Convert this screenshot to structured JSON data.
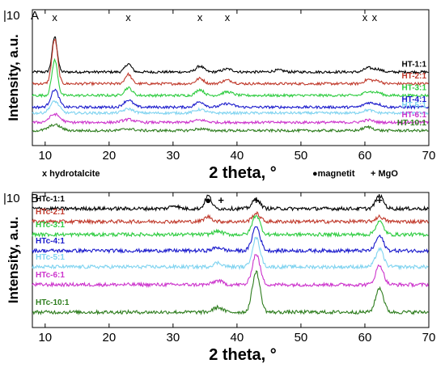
{
  "chart_data": [
    {
      "type": "line",
      "panel_label": "A",
      "scale_label": "|10",
      "xlabel": "2 theta, °",
      "ylabel": "Intensity, a.u.",
      "xlim": [
        8,
        70
      ],
      "x_ticks": [
        10,
        20,
        30,
        40,
        50,
        60,
        70
      ],
      "grid": false,
      "marker_symbol": "x",
      "marker_legend": "x hydrotalcite",
      "marker_positions": [
        11.5,
        23,
        34.2,
        38.5,
        60,
        61.5
      ],
      "series": [
        {
          "name": "HT-1:1",
          "color": "#000000",
          "offset": 6,
          "peaks": [
            [
              11.5,
              3.0,
              0.4
            ],
            [
              23,
              0.7,
              0.5
            ],
            [
              34.2,
              0.5,
              0.6
            ],
            [
              38.5,
              0.25,
              0.8
            ],
            [
              46.5,
              0.15,
              0.8
            ],
            [
              60.5,
              0.35,
              0.6
            ],
            [
              62,
              0.25,
              0.6
            ]
          ]
        },
        {
          "name": "HT-2:1",
          "color": "#c0392b",
          "offset": 5,
          "peaks": [
            [
              11.5,
              3.8,
              0.45
            ],
            [
              23,
              0.8,
              0.5
            ],
            [
              34.2,
              0.45,
              0.6
            ],
            [
              38.5,
              0.3,
              0.8
            ],
            [
              60.5,
              0.35,
              0.6
            ],
            [
              62,
              0.25,
              0.6
            ]
          ]
        },
        {
          "name": "HT-3:1",
          "color": "#2ecc40",
          "offset": 4,
          "peaks": [
            [
              11.5,
              3.0,
              0.45
            ],
            [
              23,
              0.65,
              0.6
            ],
            [
              34.2,
              0.5,
              0.6
            ],
            [
              38.5,
              0.3,
              0.8
            ],
            [
              60.5,
              0.35,
              0.6
            ],
            [
              62,
              0.25,
              0.6
            ]
          ]
        },
        {
          "name": "HT-4:1",
          "color": "#1a1acc",
          "offset": 3,
          "peaks": [
            [
              11.5,
              1.5,
              0.6
            ],
            [
              23,
              0.6,
              0.7
            ],
            [
              34.2,
              0.45,
              0.7
            ],
            [
              38.5,
              0.3,
              0.9
            ],
            [
              60.5,
              0.35,
              0.7
            ],
            [
              62,
              0.25,
              0.7
            ]
          ]
        },
        {
          "name": "HT-5:1",
          "color": "#7fd3f0",
          "offset": 2.5,
          "peaks": [
            [
              11.5,
              1.0,
              0.7
            ],
            [
              23,
              0.35,
              0.8
            ],
            [
              34.2,
              0.3,
              0.8
            ],
            [
              60.5,
              0.25,
              0.8
            ]
          ]
        },
        {
          "name": "HT-6:1",
          "color": "#cc33cc",
          "offset": 1.7,
          "peaks": [
            [
              11.5,
              0.7,
              0.8
            ],
            [
              23,
              0.25,
              0.9
            ],
            [
              34.2,
              0.2,
              0.9
            ],
            [
              60.5,
              0.2,
              0.8
            ]
          ]
        },
        {
          "name": "HT-10:1",
          "color": "#2e7d1e",
          "offset": 1.0,
          "peaks": [
            [
              11.5,
              0.5,
              0.9
            ],
            [
              23,
              0.15,
              0.9
            ],
            [
              34.2,
              0.15,
              0.9
            ],
            [
              60.5,
              0.3,
              0.8
            ]
          ]
        }
      ]
    },
    {
      "type": "line",
      "panel_label": "B",
      "scale_label": "|10",
      "xlabel": "2 theta, °",
      "ylabel": "Intensity, a.u.",
      "xlim": [
        8,
        70
      ],
      "x_ticks": [
        10,
        20,
        30,
        40,
        50,
        60,
        70
      ],
      "grid": false,
      "magnetite_legend": "magnetit",
      "mgo_legend": "+ MgO",
      "markers": [
        {
          "symbol": "●",
          "x": 35.5
        },
        {
          "symbol": "+",
          "x": 37.5
        },
        {
          "symbol": "+",
          "x": 43
        },
        {
          "symbol": "+",
          "x": 62.3
        }
      ],
      "series": [
        {
          "name": "HTc-1:1",
          "color": "#000000",
          "offset": 7,
          "peaks": [
            [
              35.5,
              0.8,
              0.5
            ],
            [
              43,
              0.6,
              0.6
            ],
            [
              62.3,
              0.8,
              0.6
            ],
            [
              30.2,
              0.2,
              0.6
            ]
          ]
        },
        {
          "name": "HTc-2:1",
          "color": "#c0392b",
          "offset": 6.2,
          "peaks": [
            [
              35.5,
              0.3,
              0.6
            ],
            [
              43,
              0.5,
              0.6
            ],
            [
              62.3,
              0.3,
              0.6
            ]
          ]
        },
        {
          "name": "HTc-3:1",
          "color": "#2ecc40",
          "offset": 5.4,
          "peaks": [
            [
              43,
              1.2,
              0.6
            ],
            [
              62.3,
              0.8,
              0.6
            ],
            [
              37,
              0.2,
              0.7
            ]
          ]
        },
        {
          "name": "HTc-4:1",
          "color": "#1a1acc",
          "offset": 4.4,
          "peaks": [
            [
              43,
              1.5,
              0.6
            ],
            [
              62.3,
              0.9,
              0.6
            ],
            [
              37,
              0.2,
              0.7
            ]
          ]
        },
        {
          "name": "HTc-5:1",
          "color": "#7fd3f0",
          "offset": 3.4,
          "peaks": [
            [
              43,
              1.8,
              0.6
            ],
            [
              62.3,
              1.1,
              0.6
            ],
            [
              37,
              0.25,
              0.7
            ]
          ]
        },
        {
          "name": "HTc-6:1",
          "color": "#cc33cc",
          "offset": 2.3,
          "peaks": [
            [
              43,
              1.9,
              0.6
            ],
            [
              62.3,
              1.2,
              0.6
            ],
            [
              37,
              0.25,
              0.7
            ]
          ]
        },
        {
          "name": "HTc-10:1",
          "color": "#2e7d1e",
          "offset": 0.6,
          "peaks": [
            [
              43,
              2.5,
              0.6
            ],
            [
              62.3,
              1.5,
              0.6
            ],
            [
              37,
              0.3,
              0.7
            ]
          ]
        }
      ]
    }
  ]
}
